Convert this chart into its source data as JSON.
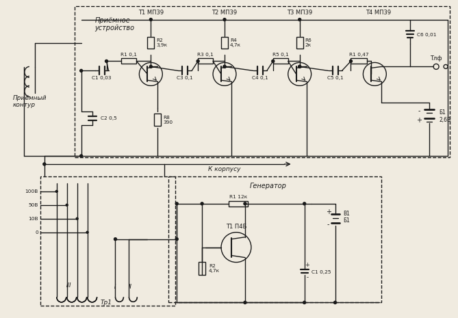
{
  "bg": "#f0ebe0",
  "lc": "#1a1a1a",
  "title_receiver": "Приёмное\nустройство",
  "title_coil": "Приёмный\nконтур",
  "t_labels": [
    "Т1 МП39",
    "Т2 МП39",
    "Т3 МП39",
    "Т4 МП39"
  ],
  "c2_label": "C2 0,5",
  "r8_label": "R8\n390",
  "c6_label": "C6 0,01",
  "tlf_label": "Тлф",
  "b1_label": "Б1\n2,6В",
  "kkorp": "К корпусу",
  "gen_label": "Генератор",
  "tp1_label": "Тр1",
  "r1_gen": "R1 12к",
  "t1_gen": "Т1 П4Б",
  "r2_gen": "R2\n4,7к",
  "c1_gen": "C1 0,25",
  "volt_labels": [
    "100В",
    "50В",
    "10В",
    "0"
  ],
  "b1_gen": "В1\nБ1"
}
